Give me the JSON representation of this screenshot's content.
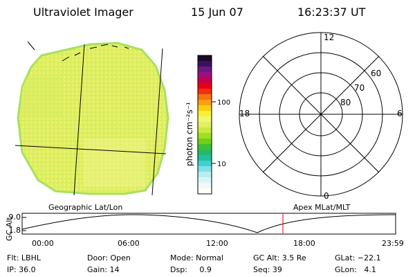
{
  "header": {
    "title": "Ultraviolet Imager",
    "date": "15 Jun 07",
    "time": "16:23:37 UT"
  },
  "colorbar": {
    "unit_label": "photon cm⁻²s⁻¹",
    "ticks": [
      "100",
      "10"
    ]
  },
  "polar_plot": {
    "mlt_labels": [
      "12",
      "18",
      "6",
      "0"
    ],
    "lat_labels": [
      "60",
      "70",
      "80"
    ]
  },
  "altitude_plot": {
    "left_title": "Geographic Lat/Lon",
    "right_title": "Apex MLat/MLT",
    "ylabel": "GC Alt",
    "yticks": [
      "9.0",
      "1.8"
    ],
    "xticks": [
      "00:00",
      "06:00",
      "12:00",
      "18:00",
      "23:59"
    ]
  },
  "info": {
    "flt": "Flt: LBHL",
    "ip": "IP: 36.0",
    "door": "Door: Open",
    "gain": "Gain: 14",
    "mode": "Mode: Normal",
    "dsp": "Dsp:     0.9",
    "gcalt": "GC Alt: 3.5 Re",
    "seq": "Seq: 39",
    "glat": "GLat: −22.1",
    "glon": "GLon:   4.1"
  },
  "colors": {
    "disk_fill": "#e6f266",
    "disk_edge": "#a8e060",
    "marker": "#e00000"
  }
}
